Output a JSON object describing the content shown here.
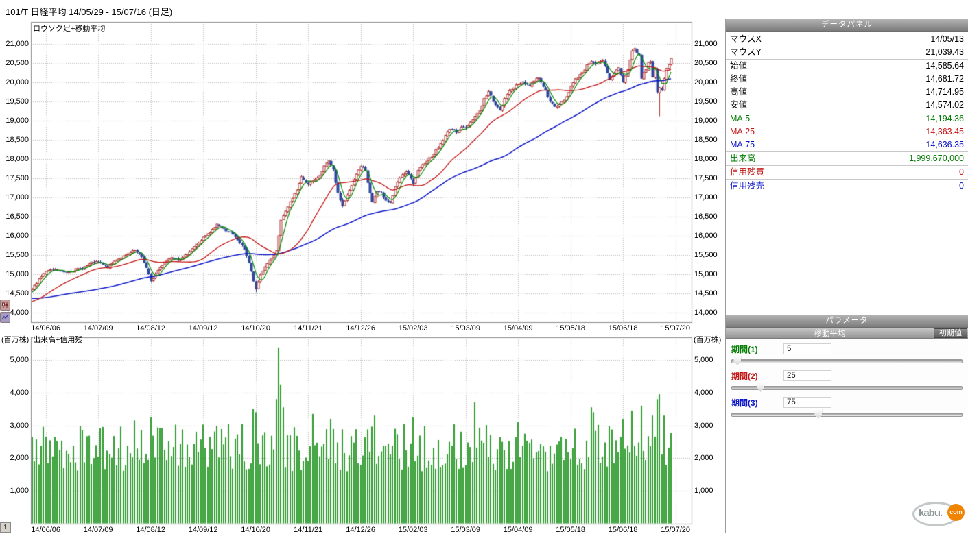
{
  "title_bar": {
    "title": "101/T 日経平均  14/05/29 - 15/07/16 (日足)"
  },
  "price_pane": {
    "label": "ロウソク足+移動平均"
  },
  "volume_pane": {
    "label": "出来高+信用残",
    "unit": "(百万株)"
  },
  "page_indicator": "1",
  "logo": {
    "kabu": "kabu.",
    "com": "com"
  },
  "side_icons": [
    {
      "name": "candlestick-chart-icon"
    },
    {
      "name": "line-chart-icon"
    }
  ],
  "data_panel": {
    "header": "データパネル",
    "rows": [
      {
        "label": "マウスX",
        "value": "14/05/13",
        "color": "#000000",
        "sep": false
      },
      {
        "label": "マウスY",
        "value": "21,039.43",
        "color": "#000000",
        "sep": true
      },
      {
        "label": "始値",
        "value": "14,585.64",
        "color": "#000000",
        "sep": false
      },
      {
        "label": "終値",
        "value": "14,681.72",
        "color": "#000000",
        "sep": false
      },
      {
        "label": "高値",
        "value": "14,714.95",
        "color": "#000000",
        "sep": false
      },
      {
        "label": "安値",
        "value": "14,574.02",
        "color": "#000000",
        "sep": true
      },
      {
        "label": "MA:5",
        "value": "14,194.36",
        "color": "#007a00",
        "sep": false
      },
      {
        "label": "MA:25",
        "value": "14,363.45",
        "color": "#c41414",
        "sep": false
      },
      {
        "label": "MA:75",
        "value": "14,636.35",
        "color": "#0a14c8",
        "sep": true
      },
      {
        "label": "出来高",
        "value": "1,999,670,000",
        "color": "#007a00",
        "sep": true
      },
      {
        "label": "信用残買",
        "value": "0",
        "color": "#c41414",
        "sep": true
      },
      {
        "label": "信用残売",
        "value": "0",
        "color": "#0a14c8",
        "sep": true
      }
    ]
  },
  "parameters": {
    "header": "パラメータ",
    "group_title": "移動平均",
    "reset_label": "初期値",
    "sliders": [
      {
        "label": "期間(1)",
        "value": 5,
        "max": 200,
        "color": "#007a00"
      },
      {
        "label": "期間(2)",
        "value": 25,
        "max": 200,
        "color": "#c41414"
      },
      {
        "label": "期間(3)",
        "value": 75,
        "max": 200,
        "color": "#0a14c8"
      }
    ]
  },
  "chart_data": {
    "type": "candlestick+volume",
    "title": "101/T 日経平均 日足",
    "n": 281,
    "seed": 7,
    "ylim": [
      13750,
      21600
    ],
    "volume_ylim": [
      0,
      5700
    ],
    "axes": {
      "price_ticks": [
        21000,
        20500,
        20000,
        19500,
        19000,
        18500,
        18000,
        17500,
        17000,
        16500,
        16000,
        15500,
        15000,
        14500,
        14000
      ],
      "volume_ticks": [
        5000,
        4000,
        3000,
        2000,
        1000
      ],
      "x_ticks": [
        {
          "index": 6,
          "label": "14/06/06"
        },
        {
          "index": 29,
          "label": "14/07/09"
        },
        {
          "index": 52,
          "label": "14/08/12"
        },
        {
          "index": 75,
          "label": "14/09/12"
        },
        {
          "index": 98,
          "label": "14/10/20"
        },
        {
          "index": 121,
          "label": "14/11/21"
        },
        {
          "index": 144,
          "label": "14/12/26"
        },
        {
          "index": 167,
          "label": "15/02/03"
        },
        {
          "index": 190,
          "label": "15/03/09"
        },
        {
          "index": 213,
          "label": "15/04/09"
        },
        {
          "index": 236,
          "label": "15/05/18"
        },
        {
          "index": 259,
          "label": "15/06/18"
        },
        {
          "index": 282,
          "label": "15/07/20"
        }
      ]
    },
    "ma_periods": [
      5,
      25,
      75
    ],
    "colors": {
      "up": "#b03232",
      "up_fill": "#ffffff",
      "down": "#2f47a0",
      "down_edge": "#24387e",
      "ma5": "#008c00",
      "ma25": "#c41414",
      "ma75": "#0a14c8",
      "volume": "#2e9c2e",
      "grid": "#b8b8b8",
      "border": "#8c8c8c"
    },
    "price_anchors": [
      [
        0,
        14600
      ],
      [
        3,
        14880
      ],
      [
        6,
        15070
      ],
      [
        10,
        15110
      ],
      [
        14,
        15050
      ],
      [
        18,
        15100
      ],
      [
        22,
        15160
      ],
      [
        26,
        15290
      ],
      [
        29,
        15310
      ],
      [
        33,
        15180
      ],
      [
        37,
        15390
      ],
      [
        41,
        15480
      ],
      [
        45,
        15620
      ],
      [
        48,
        15450
      ],
      [
        50,
        15160
      ],
      [
        52,
        14800
      ],
      [
        55,
        15100
      ],
      [
        58,
        15320
      ],
      [
        61,
        15450
      ],
      [
        64,
        15380
      ],
      [
        66,
        15420
      ],
      [
        70,
        15670
      ],
      [
        73,
        15820
      ],
      [
        75,
        15950
      ],
      [
        78,
        16080
      ],
      [
        81,
        16300
      ],
      [
        84,
        16170
      ],
      [
        87,
        16080
      ],
      [
        90,
        15890
      ],
      [
        93,
        15660
      ],
      [
        95,
        15300
      ],
      [
        97,
        14820
      ],
      [
        98,
        14580
      ],
      [
        100,
        14990
      ],
      [
        103,
        15290
      ],
      [
        106,
        15470
      ],
      [
        107,
        15590
      ],
      [
        109,
        16410
      ],
      [
        111,
        16620
      ],
      [
        113,
        16880
      ],
      [
        116,
        17200
      ],
      [
        118,
        17520
      ],
      [
        121,
        17360
      ],
      [
        124,
        17450
      ],
      [
        126,
        17590
      ],
      [
        128,
        17810
      ],
      [
        130,
        17935
      ],
      [
        132,
        17700
      ],
      [
        134,
        17100
      ],
      [
        136,
        16780
      ],
      [
        138,
        17050
      ],
      [
        140,
        17300
      ],
      [
        142,
        17600
      ],
      [
        144,
        17820
      ],
      [
        146,
        17700
      ],
      [
        148,
        17100
      ],
      [
        149,
        16880
      ],
      [
        151,
        17150
      ],
      [
        153,
        17090
      ],
      [
        155,
        16940
      ],
      [
        157,
        16860
      ],
      [
        159,
        17250
      ],
      [
        161,
        17510
      ],
      [
        164,
        17670
      ],
      [
        166,
        17480
      ],
      [
        167,
        17340
      ],
      [
        169,
        17680
      ],
      [
        172,
        17910
      ],
      [
        175,
        18070
      ],
      [
        178,
        18300
      ],
      [
        181,
        18600
      ],
      [
        183,
        18800
      ],
      [
        186,
        18710
      ],
      [
        188,
        18840
      ],
      [
        190,
        18790
      ],
      [
        193,
        19050
      ],
      [
        196,
        19250
      ],
      [
        198,
        19560
      ],
      [
        200,
        19750
      ],
      [
        202,
        19520
      ],
      [
        205,
        19250
      ],
      [
        207,
        19560
      ],
      [
        209,
        19790
      ],
      [
        211,
        19870
      ],
      [
        213,
        19940
      ],
      [
        215,
        20010
      ],
      [
        218,
        19910
      ],
      [
        220,
        20050
      ],
      [
        222,
        20130
      ],
      [
        224,
        19900
      ],
      [
        227,
        19520
      ],
      [
        229,
        19340
      ],
      [
        231,
        19420
      ],
      [
        234,
        19620
      ],
      [
        236,
        19890
      ],
      [
        238,
        20070
      ],
      [
        241,
        20260
      ],
      [
        243,
        20430
      ],
      [
        245,
        20560
      ],
      [
        247,
        20480
      ],
      [
        250,
        20550
      ],
      [
        251,
        20410
      ],
      [
        253,
        20045
      ],
      [
        255,
        20240
      ],
      [
        257,
        20390
      ],
      [
        259,
        19990
      ],
      [
        261,
        20350
      ],
      [
        263,
        20810
      ],
      [
        264,
        20868
      ],
      [
        265,
        20770
      ],
      [
        266,
        20700
      ],
      [
        267,
        20110
      ],
      [
        268,
        20235
      ],
      [
        269,
        20330
      ],
      [
        270,
        20520
      ],
      [
        271,
        20540
      ],
      [
        272,
        20110
      ],
      [
        273,
        20380
      ],
      [
        274,
        19740
      ],
      [
        275,
        19855
      ],
      [
        276,
        19780
      ],
      [
        277,
        20090
      ],
      [
        278,
        20385
      ],
      [
        279,
        20465
      ],
      [
        280,
        20600
      ]
    ],
    "pre_anchors": [
      [
        -75,
        14750
      ],
      [
        -62,
        14250
      ],
      [
        -50,
        14600
      ],
      [
        -40,
        14320
      ],
      [
        -28,
        14300
      ],
      [
        -18,
        14100
      ],
      [
        -10,
        14280
      ],
      [
        -4,
        14450
      ],
      [
        -1,
        14550
      ]
    ],
    "low_overrides": {
      "98": 14529,
      "275": 19115
    },
    "high_overrides": {
      "264": 20912
    },
    "volume": {
      "base": 1600,
      "noise": 1450,
      "spikes": {
        "45": 3150,
        "52": 3250,
        "97": 3500,
        "98": 3400,
        "107": 3800,
        "108": 5380,
        "109": 4250,
        "110": 3550,
        "123": 3350,
        "131": 3200,
        "150": 3300,
        "167": 3250,
        "194": 3700,
        "213": 3100,
        "245": 3550,
        "246": 3400,
        "259": 3200,
        "263": 3450,
        "267": 3600,
        "272": 3300,
        "274": 3800,
        "275": 3950,
        "277": 3300
      }
    }
  }
}
